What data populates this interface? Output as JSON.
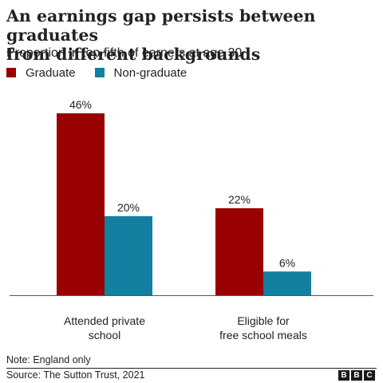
{
  "title_lines": [
    "An earnings gap persists between graduates",
    "from different backgrounds"
  ],
  "subtitle": "Proportion in top fifth of earners at age 30",
  "note": "Note: England only",
  "source": "Source: The Sutton Trust, 2021",
  "logo": [
    "B",
    "B",
    "C"
  ],
  "colors": {
    "graduate": "#990000",
    "non_graduate": "#1380a1",
    "axis": "#555555"
  },
  "chart_data": {
    "type": "bar",
    "categories": [
      [
        "Attended private",
        "school"
      ],
      [
        "Eligible for",
        "free school meals"
      ]
    ],
    "series": [
      {
        "name": "Graduate",
        "values": [
          46,
          22
        ],
        "labels": [
          "46%",
          "22%"
        ]
      },
      {
        "name": "Non-graduate",
        "values": [
          20,
          6
        ],
        "labels": [
          "20%",
          "6%"
        ]
      }
    ],
    "ylim": [
      0,
      46
    ],
    "grid": false,
    "legend": "top-left",
    "xlabel": "",
    "ylabel": ""
  }
}
